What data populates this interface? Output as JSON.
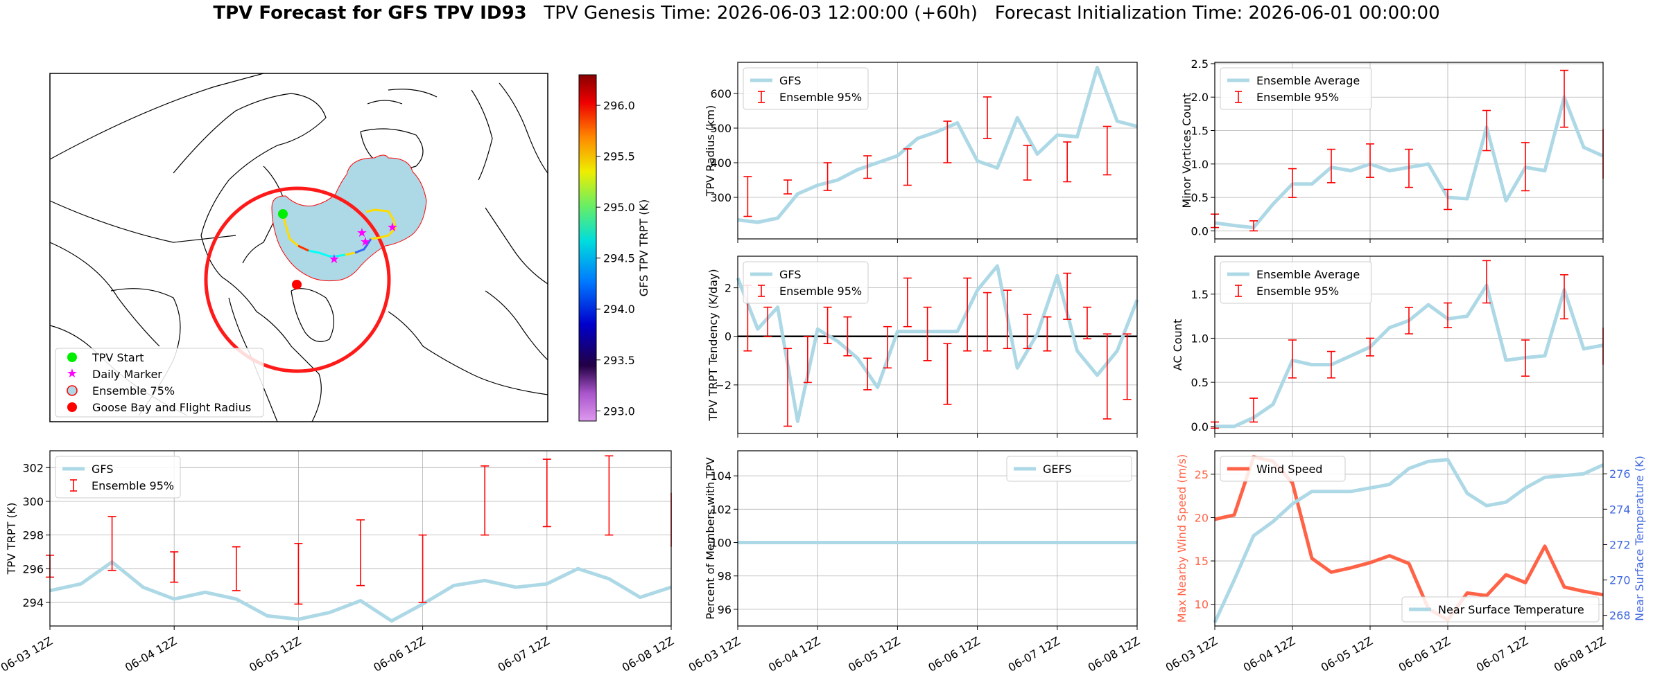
{
  "title": {
    "bold": "TPV Forecast for GFS TPV ID93",
    "genesis": "TPV Genesis Time: 2026-06-03 12:00:00 (+60h)",
    "init": "Forecast Initialization Time: 2026-06-01 00:00:00"
  },
  "colors": {
    "gfs": "#add8e6",
    "ens": "#ff0000",
    "wind": "#ff6347",
    "temp_axis": "#4169e1",
    "grid": "#b0b0b0"
  },
  "x_ticks": [
    "06-03 12Z",
    "06-04 12Z",
    "06-05 12Z",
    "06-06 12Z",
    "06-07 12Z",
    "06-08 12Z"
  ],
  "map": {
    "colorbar_label": "GFS TPV TRPT (K)",
    "colorbar_ticks": [
      "293.0",
      "293.5",
      "294.0",
      "294.5",
      "295.0",
      "295.5",
      "296.0"
    ],
    "colorbar_range": [
      292.9,
      296.3
    ],
    "legend": [
      "TPV Start",
      "Daily Marker",
      "Ensemble 75%",
      "Goose Bay and Flight Radius"
    ],
    "legend_icons": [
      "green-dot-icon",
      "magenta-star-icon",
      "ensemble-circle-icon",
      "red-dot-icon"
    ]
  },
  "chart_data": [
    {
      "id": "radius",
      "type": "line",
      "ylabel": "TPV Radius (km)",
      "ylim": [
        180,
        690
      ],
      "yticks": [
        "300",
        "400",
        "500",
        "600"
      ],
      "legend": [
        "GFS",
        "Ensemble 95%"
      ],
      "series": [
        {
          "name": "GFS",
          "values": [
            235,
            228,
            240,
            310,
            335,
            350,
            380,
            400,
            420,
            470,
            490,
            515,
            405,
            385,
            530,
            425,
            480,
            475,
            675,
            520,
            505
          ]
        }
      ],
      "errorbars": {
        "x_index": [
          0.5,
          2.5,
          4.5,
          6.5,
          8.5,
          10.5,
          12.5,
          14.5,
          16.5,
          18.5,
          20.5
        ],
        "low": [
          245,
          310,
          320,
          355,
          335,
          400,
          470,
          350,
          345,
          365,
          390
        ],
        "high": [
          360,
          350,
          400,
          420,
          440,
          520,
          590,
          450,
          460,
          505,
          490
        ]
      }
    },
    {
      "id": "minor",
      "type": "line",
      "ylabel": "Minor Vortices Count",
      "ylim": [
        -0.12,
        2.52
      ],
      "yticks": [
        "0.0",
        "0.5",
        "1.0",
        "1.5",
        "2.0",
        "2.5"
      ],
      "legend": [
        "Ensemble Average",
        "Ensemble 95%"
      ],
      "series": [
        {
          "name": "Ensemble Average",
          "values": [
            0.12,
            0.08,
            0.05,
            0.4,
            0.7,
            0.7,
            0.95,
            0.9,
            1.0,
            0.9,
            0.95,
            1.0,
            0.5,
            0.48,
            1.55,
            0.45,
            0.95,
            0.9,
            2.0,
            1.25,
            1.12
          ]
        }
      ],
      "errorbars": {
        "x_index": [
          0,
          2,
          4,
          6,
          8,
          10,
          12,
          14,
          16,
          18,
          20
        ],
        "low": [
          0.05,
          0.0,
          0.5,
          0.72,
          0.8,
          0.65,
          0.32,
          1.2,
          0.6,
          1.55,
          0.78
        ],
        "high": [
          0.25,
          0.15,
          0.93,
          1.22,
          1.3,
          1.22,
          0.62,
          1.8,
          1.32,
          2.4,
          1.52
        ]
      }
    },
    {
      "id": "tendency",
      "type": "line",
      "ylabel": "TPV TRPT Tendency (K/day)",
      "ylim": [
        -4.0,
        3.3
      ],
      "yticks": [
        "−2",
        "0",
        "2"
      ],
      "legend": [
        "GFS",
        "Ensemble 95%"
      ],
      "series": [
        {
          "name": "GFS",
          "values": [
            2.4,
            0.3,
            1.2,
            -3.5,
            0.3,
            -0.2,
            -0.9,
            -2.1,
            0.2,
            0.2,
            0.2,
            0.2,
            1.9,
            2.9,
            -1.3,
            0.1,
            2.5,
            -0.6,
            -1.6,
            -0.6,
            1.5
          ]
        }
      ],
      "errorbars": {
        "x_index": [
          0.5,
          1.5,
          2.5,
          3.5,
          4.5,
          5.5,
          6.5,
          7.5,
          8.5,
          9.5,
          10.5,
          11.5,
          12.5,
          13.5,
          14.5,
          15.5,
          16.5,
          17.5,
          18.5,
          19.5,
          20.5
        ],
        "low": [
          -0.6,
          0.0,
          -3.7,
          -1.9,
          -0.3,
          -0.8,
          -2.2,
          -1.3,
          0.4,
          -1.0,
          -2.8,
          -0.6,
          -0.6,
          -0.5,
          -0.5,
          -0.6,
          0.7,
          -0.1,
          -3.4,
          -2.6,
          -0.6
        ],
        "high": [
          2.1,
          1.2,
          -0.5,
          0.0,
          1.2,
          0.8,
          -0.9,
          0.4,
          2.4,
          1.2,
          -0.3,
          2.4,
          1.8,
          1.9,
          0.9,
          0.8,
          2.6,
          1.2,
          0.1,
          0.1,
          2.2
        ]
      }
    },
    {
      "id": "ac",
      "type": "line",
      "ylabel": "AC Count",
      "ylim": [
        -0.08,
        1.93
      ],
      "yticks": [
        "0.0",
        "0.5",
        "1.0",
        "1.5"
      ],
      "legend": [
        "Ensemble Average",
        "Ensemble 95%"
      ],
      "series": [
        {
          "name": "Ensemble Average",
          "values": [
            0.0,
            0.0,
            0.1,
            0.25,
            0.75,
            0.7,
            0.7,
            0.8,
            0.9,
            1.12,
            1.2,
            1.38,
            1.22,
            1.25,
            1.6,
            0.75,
            0.78,
            0.8,
            1.55,
            0.88,
            0.92
          ]
        }
      ],
      "errorbars": {
        "x_index": [
          0,
          2,
          4,
          6,
          8,
          10,
          12,
          14,
          16,
          18,
          20
        ],
        "low": [
          -0.02,
          0.05,
          0.55,
          0.55,
          0.8,
          1.05,
          1.12,
          1.4,
          0.57,
          1.22,
          0.7
        ],
        "high": [
          0.05,
          0.32,
          0.98,
          0.85,
          1.0,
          1.35,
          1.4,
          1.88,
          0.98,
          1.72,
          1.12
        ]
      }
    },
    {
      "id": "trpt",
      "type": "line",
      "ylabel": "TPV TRPT (K)",
      "ylim": [
        292.6,
        303.0
      ],
      "yticks": [
        "294",
        "296",
        "298",
        "300",
        "302"
      ],
      "legend": [
        "GFS",
        "Ensemble 95%"
      ],
      "series": [
        {
          "name": "GFS",
          "values": [
            294.7,
            295.1,
            296.4,
            294.9,
            294.2,
            294.6,
            294.2,
            293.2,
            293.0,
            293.4,
            294.1,
            292.9,
            293.9,
            295.0,
            295.3,
            294.9,
            295.1,
            296.0,
            295.4,
            294.3,
            294.9
          ]
        }
      ],
      "errorbars": {
        "x_index": [
          0,
          2,
          4,
          6,
          8,
          10,
          12,
          14,
          16,
          18,
          20
        ],
        "low": [
          295.5,
          295.9,
          295.2,
          294.7,
          293.9,
          295.0,
          294.0,
          298.0,
          298.5,
          298.0,
          297.3
        ],
        "high": [
          296.8,
          299.1,
          297.0,
          297.3,
          297.5,
          298.9,
          298.0,
          302.1,
          302.5,
          302.7,
          300.5
        ]
      }
    },
    {
      "id": "percent",
      "type": "line",
      "ylabel": "Percent of Members with TPV",
      "ylim": [
        95.0,
        105.5
      ],
      "yticks": [
        "96",
        "98",
        "100",
        "102",
        "104"
      ],
      "legend": [
        "GEFS"
      ],
      "series": [
        {
          "name": "GEFS",
          "values": [
            100,
            100,
            100,
            100,
            100,
            100,
            100,
            100,
            100,
            100,
            100,
            100,
            100,
            100,
            100,
            100,
            100,
            100,
            100,
            100,
            100
          ]
        }
      ]
    },
    {
      "id": "wind",
      "type": "line",
      "ylabel": "Max Nearby Wind Speed (m/s)",
      "ylim": [
        7.5,
        27.7
      ],
      "yticks": [
        "10",
        "15",
        "20",
        "25"
      ],
      "y2label": "Near Surface Temperature (K)",
      "y2lim": [
        267.4,
        277.3
      ],
      "y2ticks": [
        "268",
        "270",
        "272",
        "274",
        "276"
      ],
      "legend": [
        "Wind Speed"
      ],
      "legend2": [
        "Near Surface Temperature"
      ],
      "series": [
        {
          "name": "Wind Speed",
          "values": [
            19.8,
            20.3,
            27.0,
            26.5,
            24.0,
            15.3,
            13.7,
            14.2,
            14.8,
            15.6,
            14.7,
            9.5,
            8.2,
            11.3,
            11.0,
            13.4,
            12.5,
            16.7,
            12.0,
            11.5,
            11.1
          ]
        },
        {
          "name": "Near Surface Temperature",
          "values": [
            267.6,
            270.0,
            272.5,
            273.3,
            274.3,
            275.0,
            275.0,
            275.0,
            275.2,
            275.4,
            276.3,
            276.7,
            276.8,
            274.9,
            274.2,
            274.4,
            275.2,
            275.8,
            275.9,
            276.0,
            276.5
          ]
        }
      ]
    }
  ]
}
